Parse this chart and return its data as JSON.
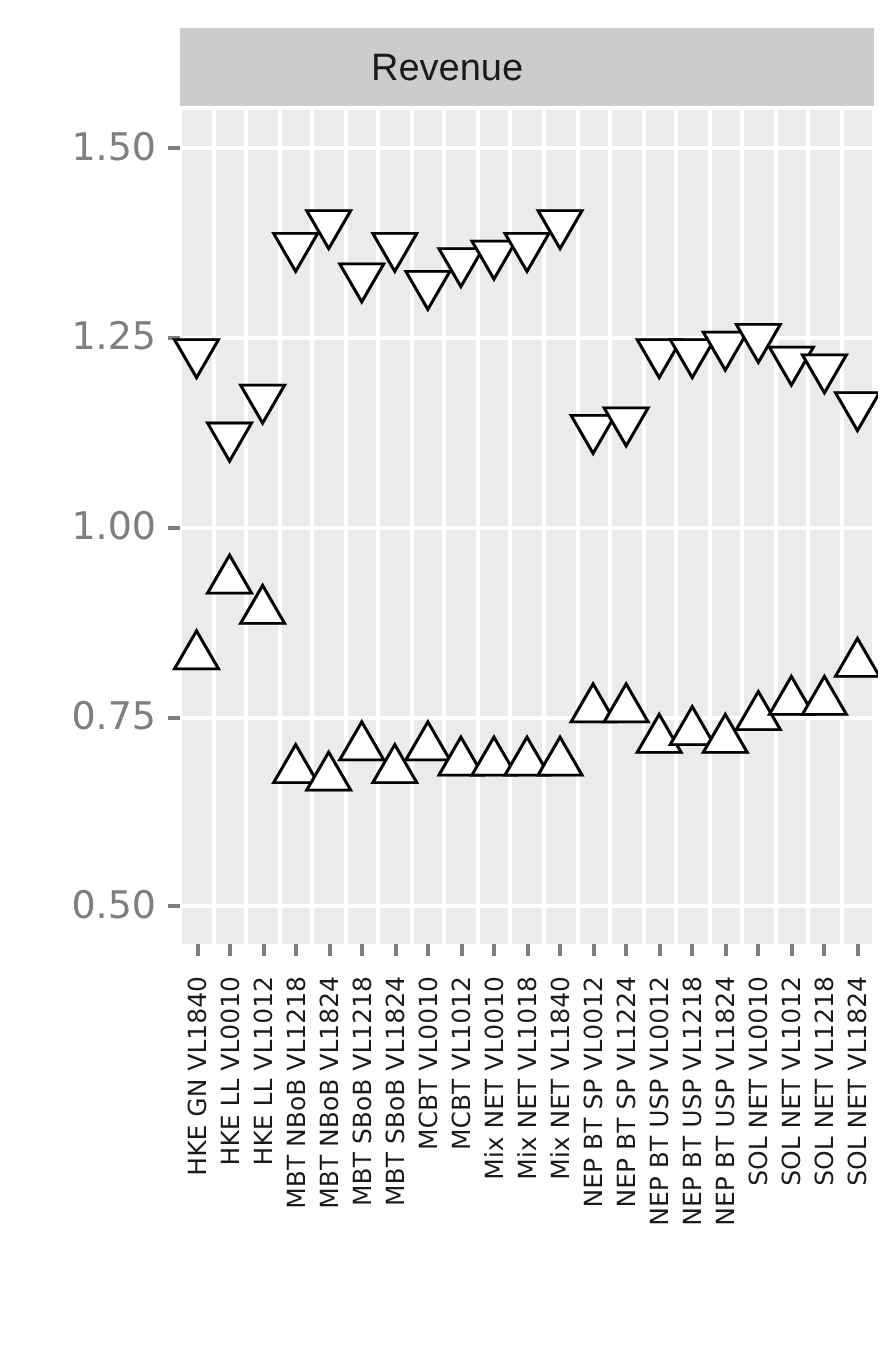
{
  "chart_data": {
    "type": "scatter",
    "title": "Revenue",
    "categories": [
      "HKE GN VL1840",
      "HKE LL VL0010",
      "HKE LL VL1012",
      "MBT NBoB VL1218",
      "MBT NBoB VL1824",
      "MBT SBoB VL1218",
      "MBT SBoB VL1824",
      "MCBT VL0010",
      "MCBT VL1012",
      "Mix NET VL0010",
      "Mix NET VL1018",
      "Mix NET VL1840",
      "NEP BT SP VL0012",
      "NEP BT SP VL1224",
      "NEP BT USP VL0012",
      "NEP BT USP VL1218",
      "NEP BT USP VL1824",
      "SOL NET VL0010",
      "SOL NET VL1012",
      "SOL NET VL1218",
      "SOL NET VL1824"
    ],
    "series": [
      {
        "color": "#ffffff",
        "marker": "triangle-down",
        "values": [
          1.23,
          1.12,
          1.17,
          1.37,
          1.4,
          1.33,
          1.37,
          1.32,
          1.35,
          1.36,
          1.37,
          1.4,
          1.13,
          1.14,
          1.23,
          1.23,
          1.24,
          1.25,
          1.22,
          1.21,
          1.16
        ]
      },
      {
        "color": "#ffffff",
        "marker": "triangle",
        "values": [
          0.83,
          0.93,
          0.89,
          0.68,
          0.67,
          0.71,
          0.68,
          0.71,
          0.69,
          0.69,
          0.69,
          0.69,
          0.76,
          0.76,
          0.72,
          0.73,
          0.72,
          0.75,
          0.77,
          0.77,
          0.82
        ]
      }
    ],
    "ylim": [
      0.45,
      1.55
    ],
    "yticks": [
      {
        "value": 0.5,
        "label": "0.50"
      },
      0.75,
      {
        "value": 1,
        "label": "1.00"
      },
      1.25,
      {
        "value": 1.5,
        "label": "1.50"
      }
    ],
    "grid": true
  }
}
